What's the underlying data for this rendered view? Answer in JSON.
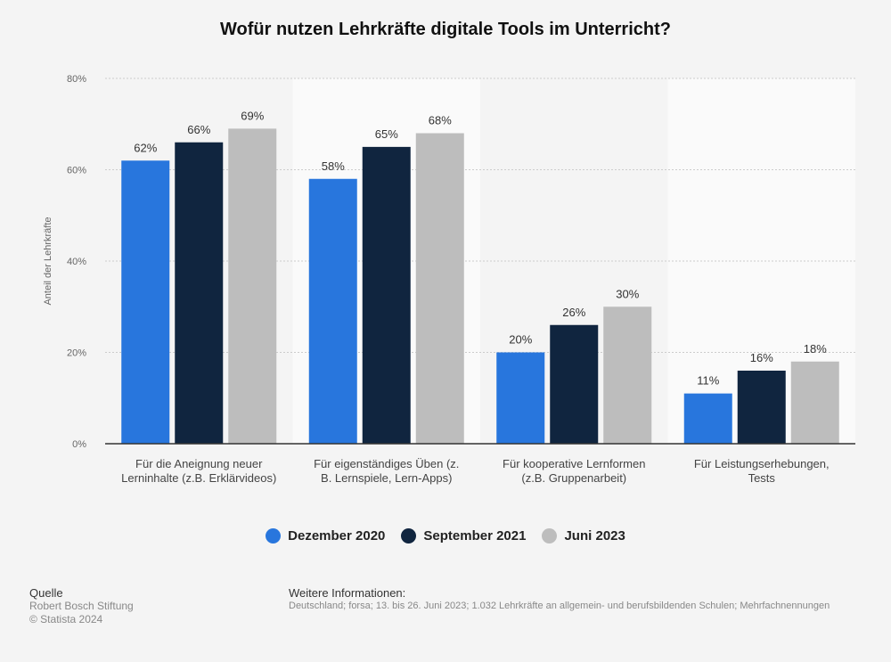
{
  "colors": {
    "background": "#f4f4f4",
    "band": "#fafafa",
    "axis": "#333333",
    "grid": "#cccccc"
  },
  "chart_data": {
    "type": "bar",
    "title": "Wofür nutzen Lehrkräfte digitale Tools im Unterricht?",
    "ylabel": "Anteil der Lehrkräfte",
    "ylim": [
      0,
      80
    ],
    "yticks": [
      0,
      20,
      40,
      60,
      80
    ],
    "yticks_labels": [
      "0%",
      "20%",
      "40%",
      "60%",
      "80%"
    ],
    "grid": true,
    "legend_position": "bottom",
    "categories": [
      [
        "Für die Aneignung neuer",
        "Lerninhalte (z.B. Erklärvideos)"
      ],
      [
        "Für eigenständiges Üben (z.",
        "B. Lernspiele, Lern-Apps)"
      ],
      [
        "Für kooperative Lernformen",
        "(z.B. Gruppenarbeit)"
      ],
      [
        "Für Leistungserhebungen,",
        "Tests"
      ]
    ],
    "series": [
      {
        "name": "Dezember 2020",
        "color": "#2876dd",
        "values": [
          62,
          58,
          20,
          11
        ],
        "labels": [
          "62%",
          "58%",
          "20%",
          "11%"
        ]
      },
      {
        "name": "September 2021",
        "color": "#10253f",
        "values": [
          66,
          65,
          26,
          16
        ],
        "labels": [
          "66%",
          "65%",
          "26%",
          "16%"
        ]
      },
      {
        "name": "Juni 2023",
        "color": "#bdbdbd",
        "values": [
          69,
          68,
          30,
          18
        ],
        "labels": [
          "69%",
          "68%",
          "30%",
          "18%"
        ]
      }
    ]
  },
  "footer": {
    "source_heading": "Quelle",
    "source_text": "Robert Bosch Stiftung",
    "copyright": "© Statista 2024",
    "info_heading": "Weitere Informationen:",
    "info_text": "Deutschland; forsa; 13. bis 26. Juni 2023; 1.032 Lehrkräfte an allgemein- und berufsbildenden Schulen; Mehrfachnennungen"
  }
}
